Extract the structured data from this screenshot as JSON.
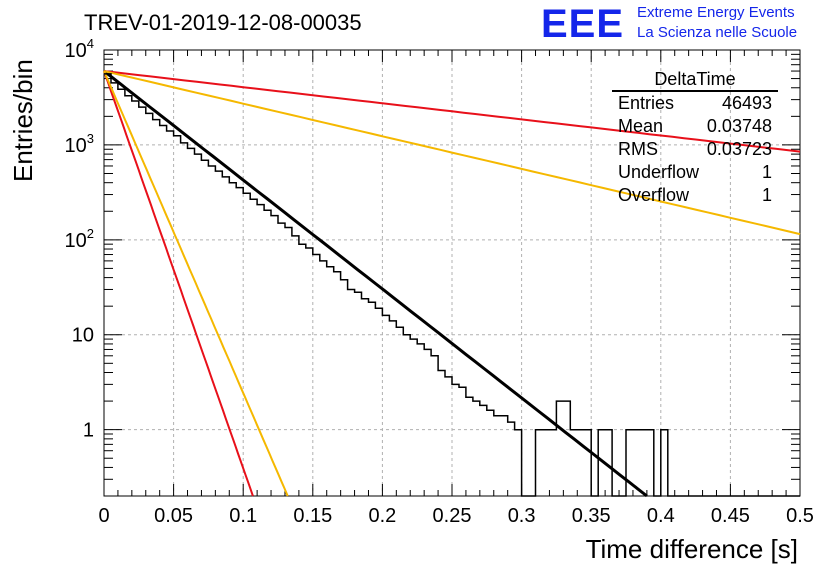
{
  "header": {
    "run_title": "TREV-01-2019-12-08-00035",
    "logo_text": "EEE",
    "logo_line1": "Extreme Energy Events",
    "logo_line2": "La Scienza nelle Scuole"
  },
  "stats_box": {
    "title": "DeltaTime",
    "rows": [
      {
        "label": "Entries",
        "value": "46493"
      },
      {
        "label": "Mean",
        "value": "0.03748"
      },
      {
        "label": "RMS",
        "value": "0.03723"
      },
      {
        "label": "Underflow",
        "value": "1"
      },
      {
        "label": "Overflow",
        "value": "1"
      }
    ]
  },
  "colors": {
    "histogram": "#000000",
    "fit": "#000000",
    "red": "#e8101a",
    "orange": "#f5b800",
    "grid": "#b0b0b0"
  },
  "chart_data": {
    "type": "line",
    "title": "TREV-01-2019-12-08-00035",
    "xlabel": "Time difference [s]",
    "ylabel": "Entries/bin",
    "xlim": [
      0,
      0.5
    ],
    "ylim": [
      0.2,
      10000
    ],
    "yscale": "log",
    "grid": true,
    "legend": "none",
    "x_ticks": [
      "0",
      "0.05",
      "0.1",
      "0.15",
      "0.2",
      "0.25",
      "0.3",
      "0.35",
      "0.4",
      "0.45",
      "0.5"
    ],
    "y_ticks": [
      {
        "value": 1,
        "label": "1"
      },
      {
        "value": 10,
        "label": "10"
      },
      {
        "value": 100,
        "label": "10^2"
      },
      {
        "value": 1000,
        "label": "10^3"
      },
      {
        "value": 10000,
        "label": "10^4"
      }
    ],
    "histogram": {
      "bin_width": 0.005,
      "counts": [
        5600,
        4500,
        3850,
        3300,
        2900,
        2500,
        2150,
        1850,
        1600,
        1400,
        1250,
        1050,
        920,
        800,
        690,
        600,
        530,
        460,
        400,
        355,
        310,
        268,
        235,
        205,
        180,
        150,
        135,
        110,
        90,
        82,
        70,
        60,
        52,
        46,
        38,
        30,
        28,
        24,
        22,
        19,
        16,
        14,
        12,
        10,
        9,
        8,
        7,
        6,
        4.2,
        3.6,
        3,
        2.8,
        2.2,
        2,
        1.8,
        1.6,
        1.4,
        1.4,
        1.2,
        1,
        0.2,
        0.2,
        1,
        1,
        1,
        2,
        2,
        1,
        1,
        1,
        0.2,
        1,
        1,
        0.2,
        0.2,
        1,
        1,
        1,
        1,
        0.2,
        1,
        0.2,
        0.2,
        0.2,
        0.2,
        0.2,
        0.2,
        0.2,
        0.2,
        0.2,
        0.2,
        0.2,
        0.2,
        0.2,
        0.2,
        0.2,
        0.2,
        0.2,
        0.2,
        0.2
      ]
    },
    "series": [
      {
        "role": "fit",
        "color": "#000000",
        "x": [
          0,
          0.39
        ],
        "y": [
          6000,
          0.2
        ]
      },
      {
        "role": "upper",
        "color": "#e8101a",
        "x": [
          0,
          0.5
        ],
        "y": [
          6000,
          850
        ]
      },
      {
        "role": "upper",
        "color": "#f5b800",
        "x": [
          0,
          0.5
        ],
        "y": [
          6000,
          115
        ]
      },
      {
        "role": "lower",
        "color": "#e8101a",
        "x": [
          0,
          0.107
        ],
        "y": [
          6000,
          0.2
        ]
      },
      {
        "role": "lower",
        "color": "#f5b800",
        "x": [
          0,
          0.132
        ],
        "y": [
          6000,
          0.2
        ]
      }
    ]
  }
}
